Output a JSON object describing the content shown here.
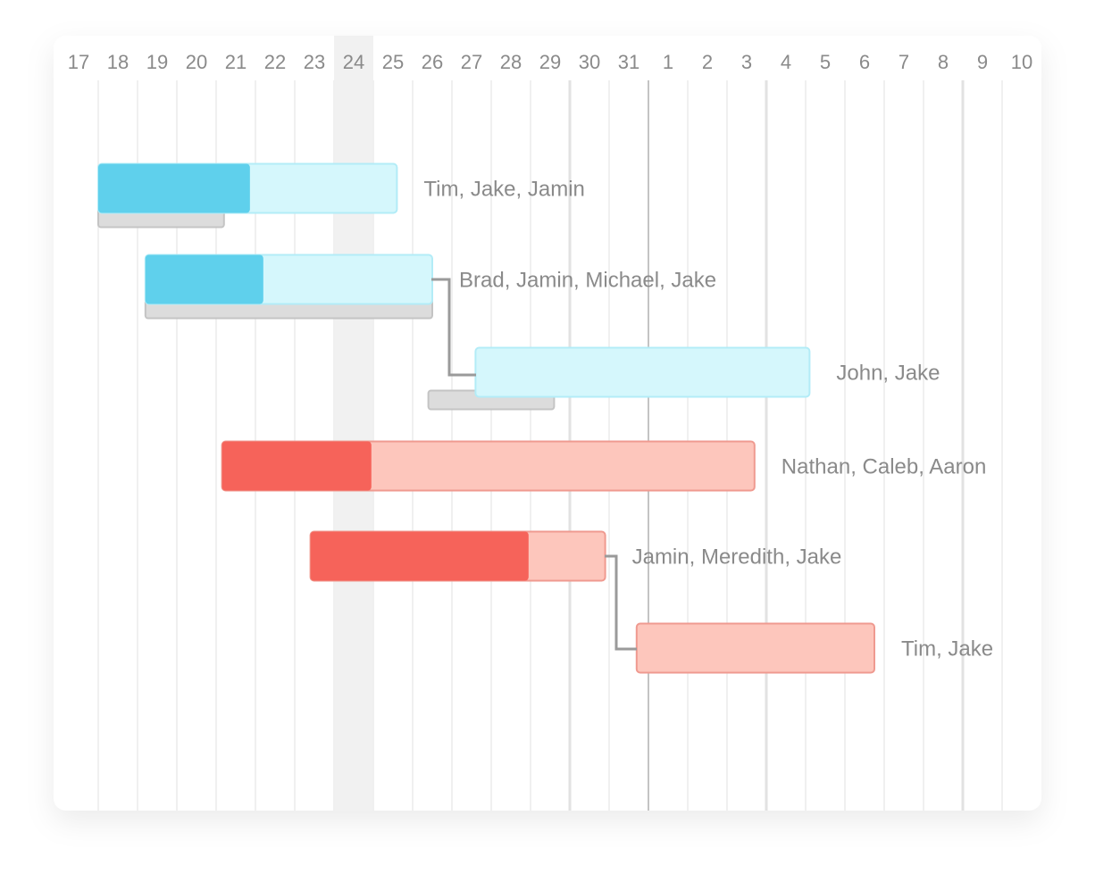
{
  "timeline": {
    "days": [
      "17",
      "18",
      "19",
      "20",
      "21",
      "22",
      "23",
      "24",
      "25",
      "26",
      "27",
      "28",
      "29",
      "30",
      "31",
      "1",
      "2",
      "3",
      "4",
      "5",
      "6",
      "7",
      "8",
      "9",
      "10"
    ],
    "highlight_column": 7,
    "tasks": [
      {
        "label": "Tim, Jake, Jamin",
        "start": 1.0,
        "end": 8.6,
        "progress_end": 4.86,
        "baseline": [
          1.0,
          4.2
        ],
        "color": "#5fd0ec",
        "light_color": "#d5f7fc",
        "border_color": "#b3ecf7"
      },
      {
        "label": "Brad, Jamin, Michael, Jake",
        "start": 2.2,
        "end": 9.5,
        "progress_end": 5.2,
        "baseline": [
          2.2,
          9.5
        ],
        "color": "#5fd0ec",
        "light_color": "#d5f7fc",
        "border_color": "#b3ecf7"
      },
      {
        "label": "John, Jake",
        "start": 10.6,
        "end": 19.1,
        "progress_end": 10.6,
        "baseline": [
          9.4,
          12.6
        ],
        "color": "#5fd0ec",
        "light_color": "#d5f7fc",
        "border_color": "#b3ecf7"
      },
      {
        "label": "Nathan, Caleb, Aaron",
        "start": 4.15,
        "end": 17.7,
        "progress_end": 7.95,
        "color": "#f6635a",
        "light_color": "#fdc6bc",
        "border_color": "#ef9a90"
      },
      {
        "label": "Jamin, Meredith, Jake",
        "start": 6.4,
        "end": 13.9,
        "progress_end": 11.95,
        "color": "#f6635a",
        "light_color": "#fdc6bc",
        "border_color": "#ef9a90"
      },
      {
        "label": "Tim, Jake",
        "start": 14.7,
        "end": 20.75,
        "progress_end": 14.7,
        "color": "#f6635a",
        "light_color": "#fdc6bc",
        "border_color": "#ef9a90"
      }
    ]
  }
}
